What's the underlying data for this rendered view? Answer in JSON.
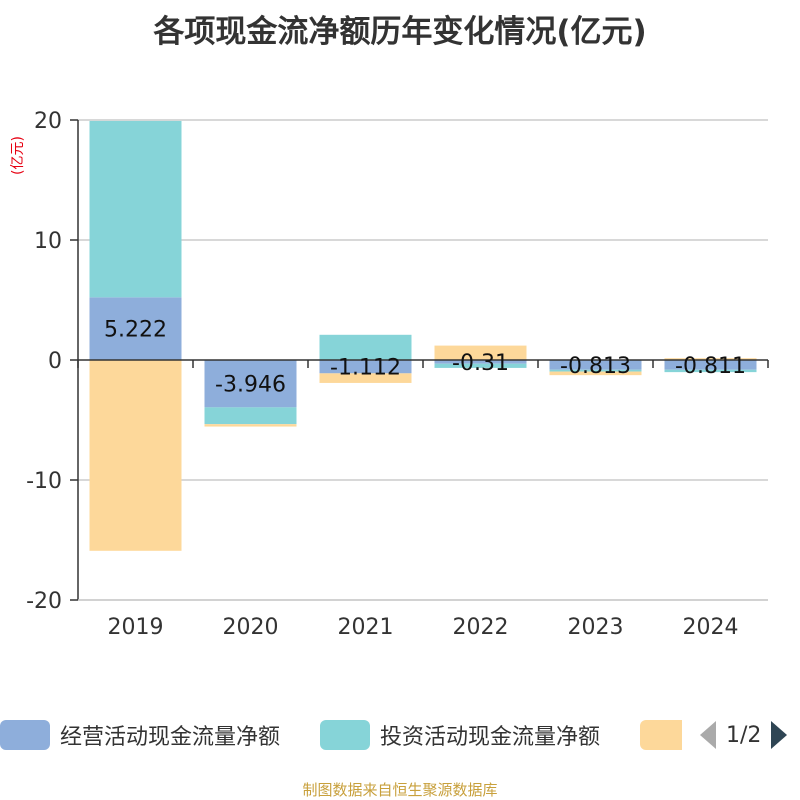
{
  "chart_data": {
    "type": "bar",
    "stacked": true,
    "title": "各项现金流净额历年变化情况(亿元)",
    "unit_label": "(亿元)",
    "categories": [
      "2019",
      "2020",
      "2021",
      "2022",
      "2023",
      "2024"
    ],
    "ylim": [
      -20,
      20
    ],
    "yticks": [
      20,
      10,
      0,
      -10,
      -20
    ],
    "grid": true,
    "series": [
      {
        "name": "经营活动现金流量净额",
        "color": "#8eaedb",
        "values": [
          5.222,
          -3.946,
          -1.112,
          -0.31,
          -0.813,
          -0.811
        ]
      },
      {
        "name": "投资活动现金流量净额",
        "color": "#86d4d8",
        "values": [
          14.7,
          -1.4,
          2.1,
          -0.35,
          -0.15,
          -0.2
        ]
      },
      {
        "name": "",
        "color": "#fdd89a",
        "values": [
          -15.9,
          -0.2,
          -0.8,
          1.2,
          -0.3,
          0.15
        ]
      }
    ],
    "data_labels": [
      "5.222",
      "-3.946",
      "-1.112",
      "-0.31",
      "-0.813",
      "-0.811"
    ],
    "legend_position": "bottom"
  },
  "legend": {
    "items": [
      {
        "label": "经营活动现金流量净额"
      },
      {
        "label": "投资活动现金流量净额"
      },
      {
        "label": ""
      }
    ],
    "page_indicator": "1/2"
  },
  "source": "制图数据来自恒生聚源数据库"
}
